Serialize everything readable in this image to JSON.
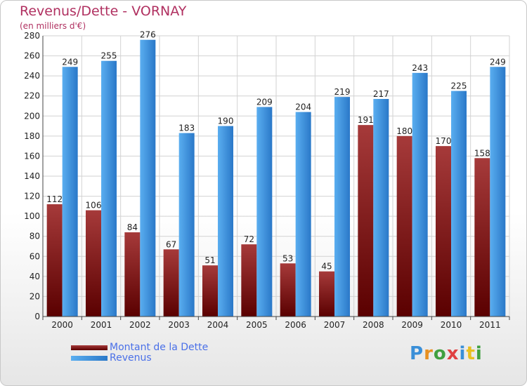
{
  "chart_data": {
    "type": "bar",
    "title": "Revenus/Dette - VORNAY",
    "subtitle": "(en milliers d'€)",
    "categories": [
      "2000",
      "2001",
      "2002",
      "2003",
      "2004",
      "2005",
      "2006",
      "2007",
      "2008",
      "2009",
      "2010",
      "2011"
    ],
    "series": [
      {
        "name": "Montant de la Dette",
        "color": "#8b1a1a",
        "values": [
          112,
          106,
          84,
          67,
          51,
          72,
          53,
          45,
          191,
          180,
          170,
          158
        ]
      },
      {
        "name": "Revenus",
        "color": "#3a8fd8",
        "values": [
          249,
          255,
          276,
          183,
          190,
          209,
          204,
          219,
          217,
          243,
          225,
          249
        ]
      }
    ],
    "ylim": [
      0,
      280
    ],
    "yticks": [
      0,
      20,
      40,
      60,
      80,
      100,
      120,
      140,
      160,
      180,
      200,
      220,
      240,
      260,
      280
    ],
    "grid": true,
    "legend": "bottom-left"
  },
  "logo": {
    "text": "Proxiti"
  }
}
